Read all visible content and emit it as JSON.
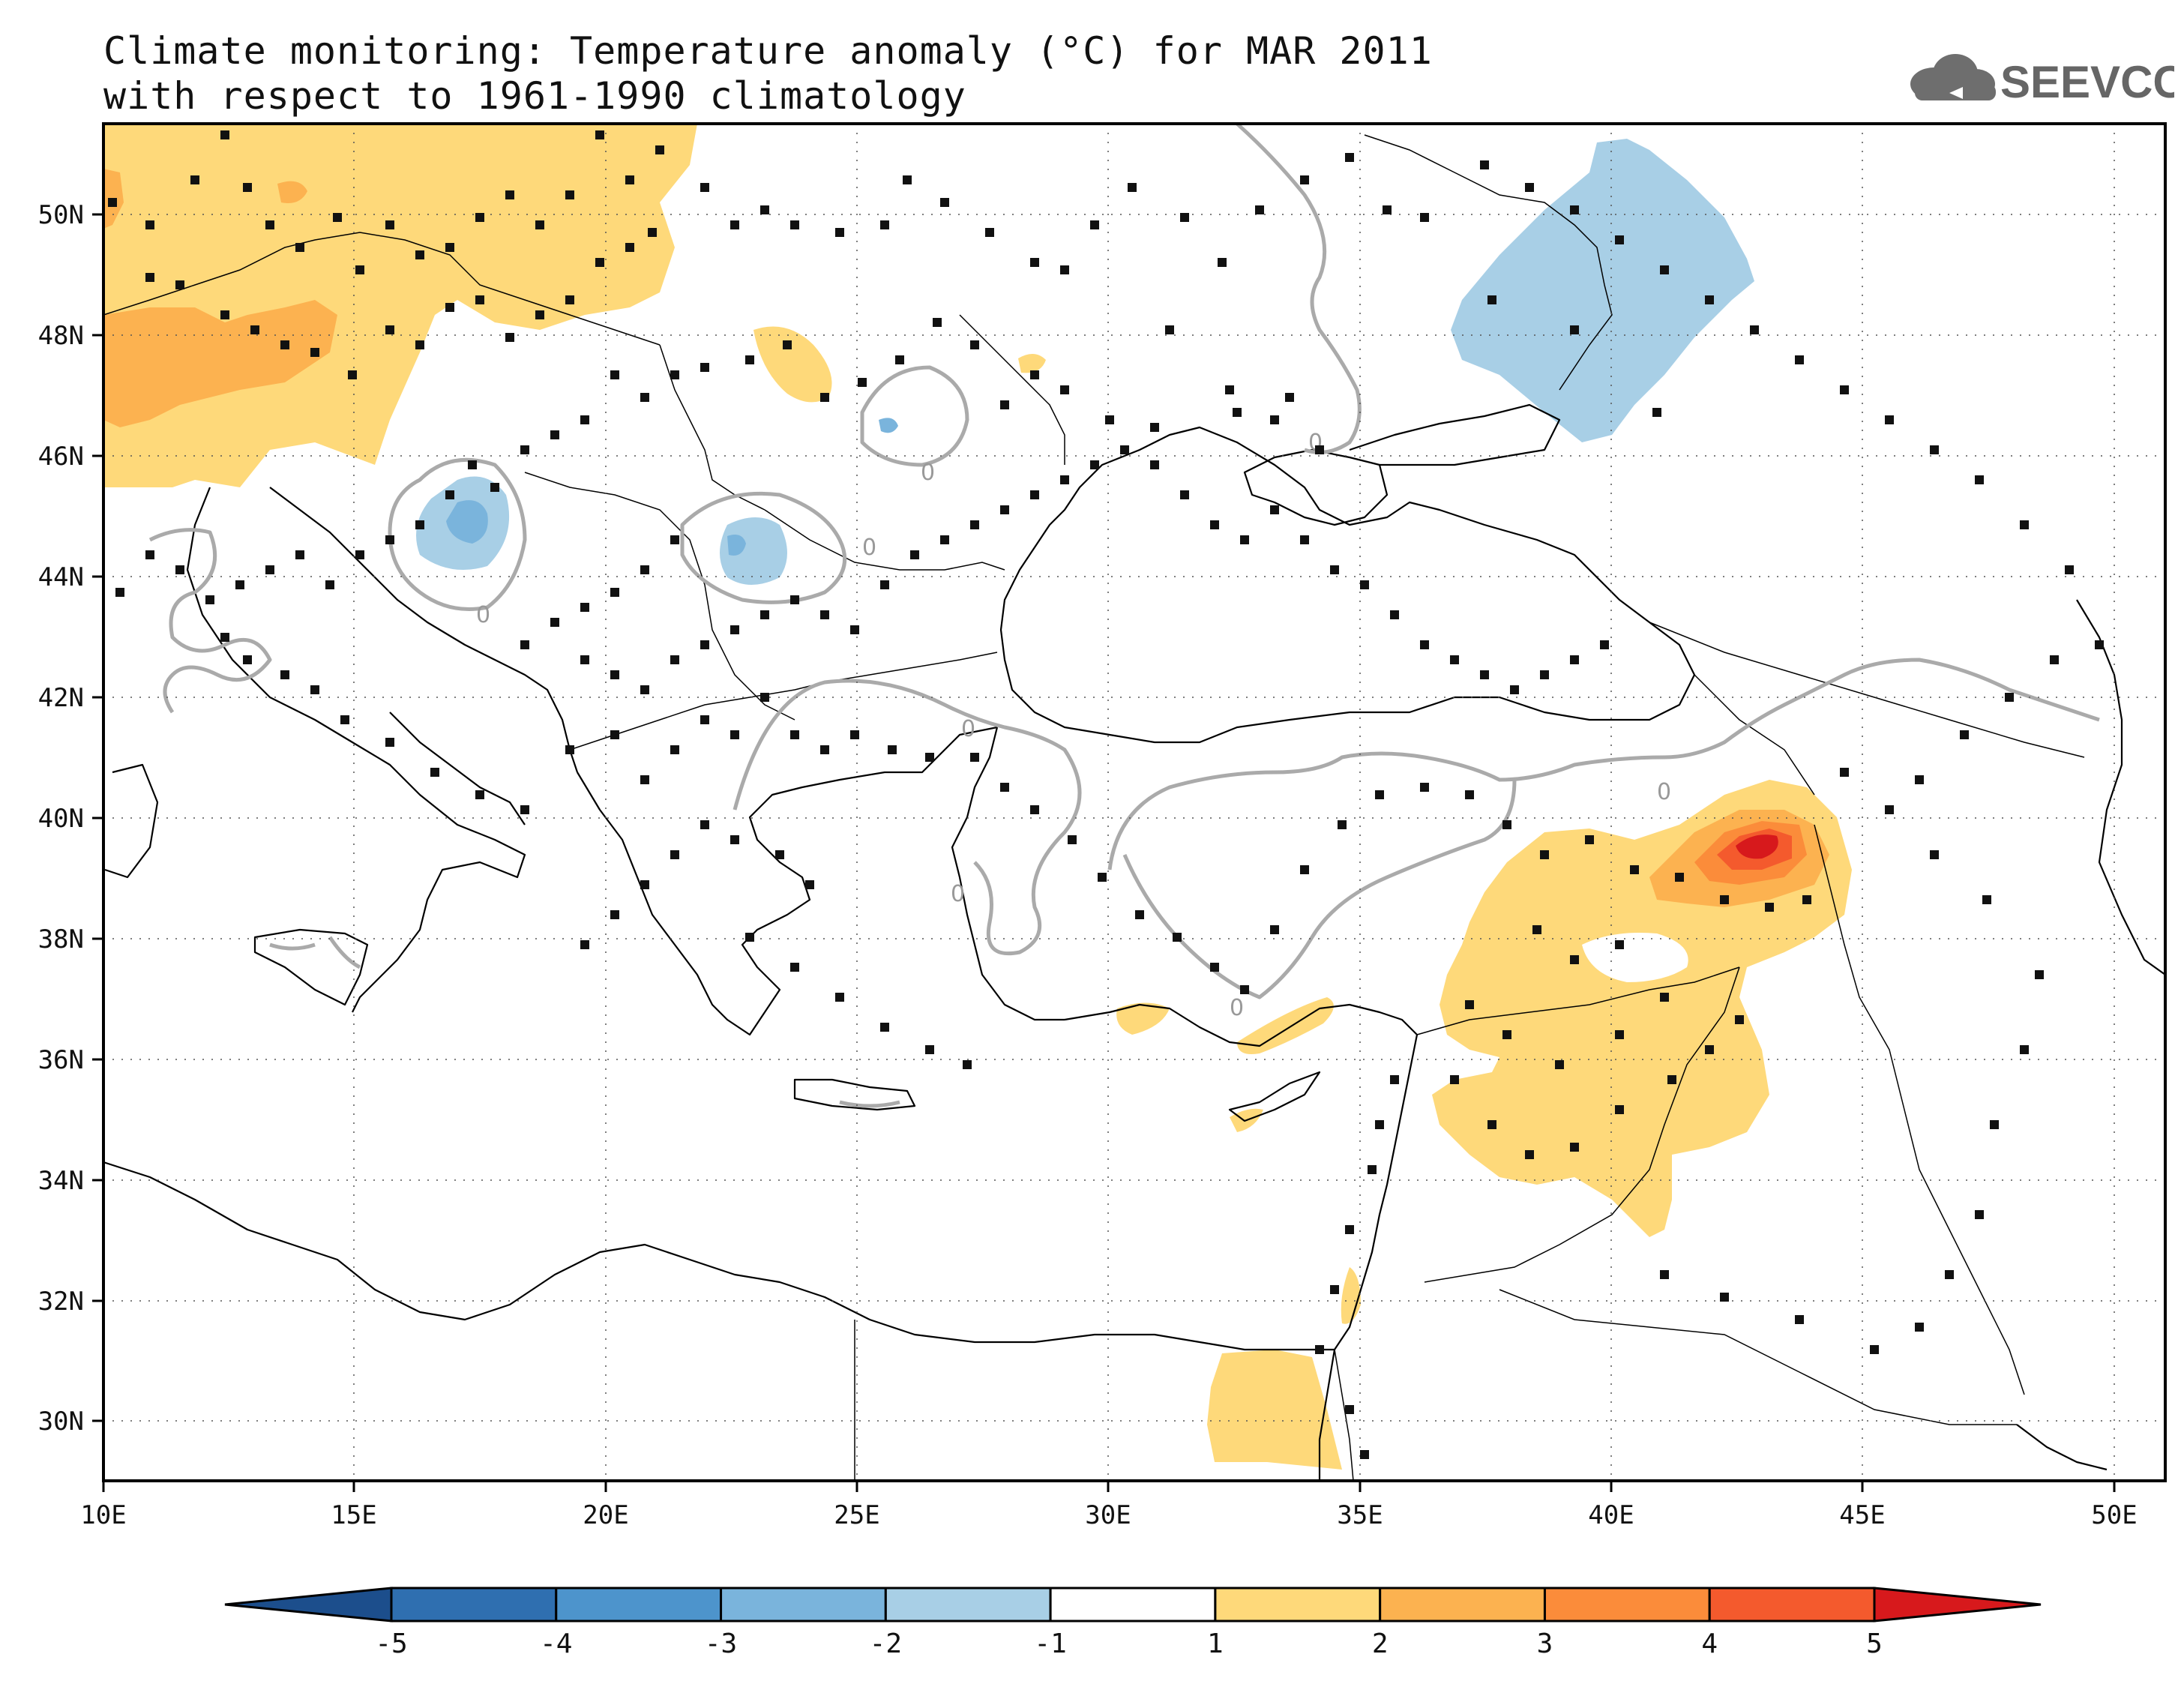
{
  "title": {
    "line1": "Climate monitoring: Temperature anomaly (°C) for MAR 2011",
    "line2": "with respect to 1961-1990 climatology"
  },
  "logo": {
    "text": "SEEVCCC",
    "icon": "cloud-icon",
    "color": "#6e6e6e"
  },
  "map": {
    "lon_range": [
      10,
      51
    ],
    "lat_range": [
      29,
      51.5
    ],
    "x_ticks": [
      "10E",
      "15E",
      "20E",
      "25E",
      "30E",
      "35E",
      "40E",
      "45E",
      "50E"
    ],
    "y_ticks": [
      "30N",
      "32N",
      "34N",
      "36N",
      "38N",
      "40N",
      "42N",
      "44N",
      "46N",
      "48N",
      "50N"
    ],
    "contour_label": "0"
  },
  "colorbar": {
    "labels": [
      "-5",
      "-4",
      "-3",
      "-2",
      "-1",
      "1",
      "2",
      "3",
      "4",
      "5"
    ],
    "colors": [
      "#1c4e8c",
      "#2f6fb0",
      "#4d94cc",
      "#7ab4dc",
      "#a8cfe6",
      "#ffffff",
      "#fed97a",
      "#fcb250",
      "#fb8c3a",
      "#f45a2d",
      "#d7191c"
    ]
  },
  "colors": {
    "warm1": "#fed97a",
    "warm2": "#fcb250",
    "warm3": "#fb8c3a",
    "warm4": "#f45a2d",
    "warm5": "#d7191c",
    "cool1": "#a8cfe6",
    "cool2": "#7ab4dc",
    "cool3": "#4d94cc",
    "contour": "#aaaaaa",
    "station": "#111111"
  }
}
